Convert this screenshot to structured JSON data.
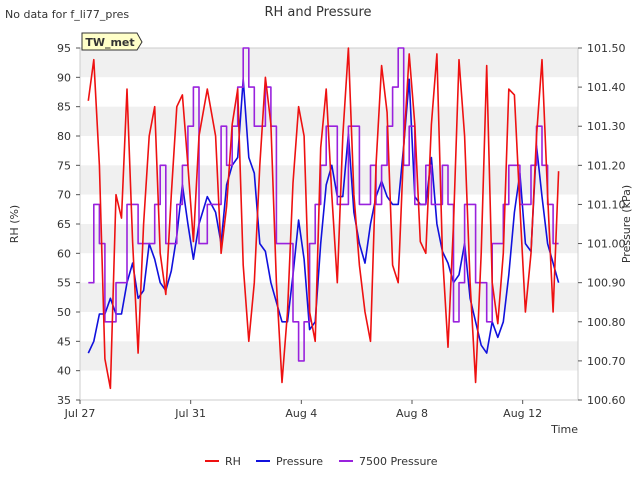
{
  "chart_data": {
    "type": "line",
    "title": "RH and Pressure",
    "corner_note": "No data for f_li77_pres",
    "station_tag": "TW_met",
    "xlabel": "Time",
    "ylabel_left": "RH (%)",
    "ylabel_right": "Pressure (kPa)",
    "x_ticks": [
      {
        "label": "Jul 27",
        "day": 0
      },
      {
        "label": "Jul 31",
        "day": 4
      },
      {
        "label": "Aug 4",
        "day": 8
      },
      {
        "label": "Aug 8",
        "day": 12
      },
      {
        "label": "Aug 12",
        "day": 16
      }
    ],
    "xlim_days": [
      0,
      18
    ],
    "ylim_left": [
      35,
      95
    ],
    "yticks_left": [
      35,
      40,
      45,
      50,
      55,
      60,
      65,
      70,
      75,
      80,
      85,
      90,
      95
    ],
    "ylim_right": [
      100.6,
      101.5
    ],
    "yticks_right": [
      100.6,
      100.7,
      100.8,
      100.9,
      101.0,
      101.1,
      101.2,
      101.3,
      101.4,
      101.5
    ],
    "yticks_right_labels": [
      "100.60",
      "100.70",
      "100.80",
      "100.90",
      "101.00",
      "101.10",
      "101.20",
      "101.30",
      "101.40",
      "101.50"
    ],
    "grid": "horizontal bands",
    "legend_position": "bottom-center",
    "series": [
      {
        "name": "RH",
        "axis": "left",
        "color": "#ee1111",
        "x": [
          0.3,
          0.5,
          0.7,
          0.9,
          1.1,
          1.3,
          1.5,
          1.7,
          1.9,
          2.1,
          2.3,
          2.5,
          2.7,
          2.9,
          3.1,
          3.3,
          3.5,
          3.7,
          3.9,
          4.1,
          4.3,
          4.6,
          4.9,
          5.1,
          5.3,
          5.5,
          5.7,
          5.9,
          6.1,
          6.3,
          6.5,
          6.7,
          6.9,
          7.1,
          7.3,
          7.5,
          7.7,
          7.9,
          8.1,
          8.3,
          8.5,
          8.7,
          8.9,
          9.1,
          9.3,
          9.5,
          9.7,
          9.9,
          10.1,
          10.3,
          10.5,
          10.7,
          10.9,
          11.1,
          11.3,
          11.5,
          11.7,
          11.9,
          12.1,
          12.3,
          12.5,
          12.7,
          12.9,
          13.1,
          13.3,
          13.5,
          13.7,
          13.9,
          14.1,
          14.3,
          14.5,
          14.7,
          14.9,
          15.1,
          15.3,
          15.5,
          15.7,
          15.9,
          16.1,
          16.3,
          16.5,
          16.7,
          16.9,
          17.1,
          17.3
        ],
        "y": [
          86,
          93,
          75,
          42,
          37,
          70,
          66,
          88,
          62,
          43,
          65,
          80,
          85,
          60,
          53,
          70,
          85,
          87,
          75,
          62,
          80,
          88,
          80,
          60,
          68,
          82,
          88,
          58,
          45,
          55,
          75,
          90,
          82,
          55,
          38,
          50,
          72,
          85,
          80,
          50,
          45,
          78,
          88,
          70,
          55,
          80,
          95,
          70,
          58,
          50,
          45,
          75,
          92,
          84,
          58,
          55,
          78,
          94,
          82,
          62,
          60,
          82,
          94,
          60,
          44,
          65,
          93,
          80,
          55,
          38,
          60,
          92,
          55,
          48,
          60,
          88,
          87,
          68,
          50,
          60,
          80,
          93,
          70,
          50,
          74
        ]
      },
      {
        "name": "Pressure",
        "axis": "right",
        "color": "#1111dd",
        "x": [
          0.3,
          0.5,
          0.7,
          0.9,
          1.1,
          1.3,
          1.5,
          1.7,
          1.9,
          2.1,
          2.3,
          2.5,
          2.7,
          2.9,
          3.1,
          3.3,
          3.5,
          3.7,
          3.9,
          4.1,
          4.3,
          4.6,
          4.9,
          5.1,
          5.3,
          5.5,
          5.7,
          5.9,
          6.1,
          6.3,
          6.5,
          6.7,
          6.9,
          7.1,
          7.3,
          7.5,
          7.7,
          7.9,
          8.1,
          8.3,
          8.5,
          8.7,
          8.9,
          9.1,
          9.3,
          9.5,
          9.7,
          9.9,
          10.1,
          10.3,
          10.5,
          10.7,
          10.9,
          11.1,
          11.3,
          11.5,
          11.7,
          11.9,
          12.1,
          12.3,
          12.5,
          12.7,
          12.9,
          13.1,
          13.3,
          13.5,
          13.7,
          13.9,
          14.1,
          14.3,
          14.5,
          14.7,
          14.9,
          15.1,
          15.3,
          15.5,
          15.7,
          15.9,
          16.1,
          16.3,
          16.5,
          16.7,
          16.9,
          17.1,
          17.3
        ],
        "y": [
          100.72,
          100.75,
          100.82,
          100.82,
          100.86,
          100.82,
          100.82,
          100.9,
          100.95,
          100.86,
          100.88,
          101.0,
          100.96,
          100.9,
          100.88,
          100.93,
          101.02,
          101.15,
          101.05,
          100.96,
          101.05,
          101.12,
          101.08,
          101.0,
          101.15,
          101.2,
          101.22,
          101.42,
          101.22,
          101.18,
          101.0,
          100.98,
          100.9,
          100.85,
          100.8,
          100.8,
          100.92,
          101.06,
          100.96,
          100.78,
          100.8,
          101.0,
          101.15,
          101.2,
          101.12,
          101.12,
          101.28,
          101.08,
          101.0,
          100.95,
          101.05,
          101.12,
          101.16,
          101.12,
          101.1,
          101.1,
          101.25,
          101.42,
          101.12,
          101.1,
          101.1,
          101.22,
          101.05,
          100.98,
          100.95,
          100.9,
          100.92,
          101.0,
          100.86,
          100.8,
          100.74,
          100.72,
          100.8,
          100.76,
          100.8,
          100.92,
          101.08,
          101.18,
          101.0,
          100.98,
          101.25,
          101.12,
          101.0,
          100.95,
          100.9
        ]
      },
      {
        "name": "7500 Pressure",
        "axis": "right",
        "color": "#9922dd",
        "x": [
          0.3,
          0.5,
          0.7,
          0.9,
          1.1,
          1.3,
          1.5,
          1.7,
          1.9,
          2.1,
          2.3,
          2.5,
          2.7,
          2.9,
          3.1,
          3.3,
          3.5,
          3.7,
          3.9,
          4.1,
          4.3,
          4.6,
          4.9,
          5.1,
          5.3,
          5.5,
          5.7,
          5.9,
          6.1,
          6.3,
          6.5,
          6.7,
          6.9,
          7.1,
          7.3,
          7.5,
          7.7,
          7.9,
          8.1,
          8.3,
          8.5,
          8.7,
          8.9,
          9.1,
          9.3,
          9.5,
          9.7,
          9.9,
          10.1,
          10.3,
          10.5,
          10.7,
          10.9,
          11.1,
          11.3,
          11.5,
          11.7,
          11.9,
          12.1,
          12.3,
          12.5,
          12.7,
          12.9,
          13.1,
          13.3,
          13.5,
          13.7,
          13.9,
          14.1,
          14.3,
          14.5,
          14.7,
          14.9,
          15.1,
          15.3,
          15.5,
          15.7,
          15.9,
          16.1,
          16.3,
          16.5,
          16.7,
          16.9,
          17.1,
          17.3
        ],
        "y": [
          100.9,
          101.1,
          101.0,
          100.8,
          100.8,
          100.9,
          100.9,
          101.1,
          101.1,
          101.0,
          101.0,
          101.0,
          101.1,
          101.2,
          101.0,
          101.0,
          101.1,
          101.2,
          101.3,
          101.4,
          101.0,
          101.1,
          101.1,
          101.3,
          101.2,
          101.3,
          101.4,
          101.5,
          101.4,
          101.3,
          101.3,
          101.4,
          101.3,
          101.0,
          101.0,
          101.0,
          100.8,
          100.7,
          100.8,
          101.0,
          101.1,
          101.2,
          101.3,
          101.3,
          101.1,
          101.1,
          101.3,
          101.3,
          101.1,
          101.1,
          101.2,
          101.1,
          101.2,
          101.3,
          101.4,
          101.5,
          101.2,
          101.3,
          101.1,
          101.1,
          101.2,
          101.1,
          101.1,
          101.2,
          101.1,
          100.8,
          100.9,
          101.1,
          101.1,
          100.9,
          100.9,
          100.8,
          101.0,
          101.0,
          101.1,
          101.2,
          101.2,
          101.1,
          101.1,
          101.2,
          101.3,
          101.2,
          101.1,
          101.0,
          101.0
        ]
      }
    ]
  }
}
